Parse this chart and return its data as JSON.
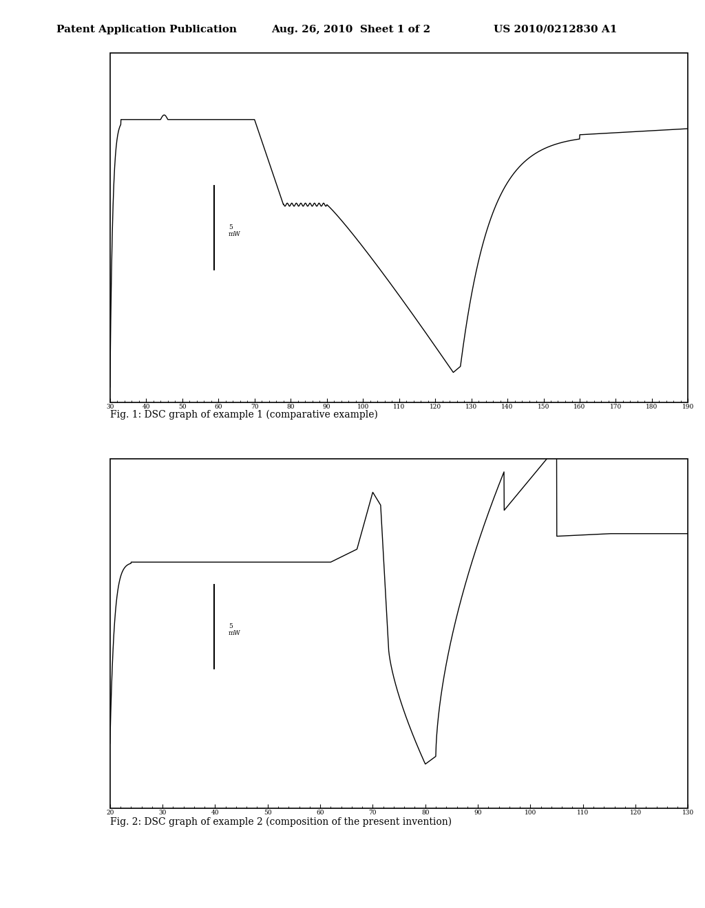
{
  "background_color": "#ffffff",
  "header_left": "Patent Application Publication",
  "header_center": "Aug. 26, 2010  Sheet 1 of 2",
  "header_right": "US 2010/0212830 A1",
  "fig1_caption": "Fig. 1: DSC graph of example 1 (comparative example)",
  "fig2_caption": "Fig. 2: DSC graph of example 2 (composition of the present invention)",
  "fig1_ylabel": "5\nmW",
  "fig2_ylabel": "5\nmW",
  "fig1_xticks_vals": [
    30,
    40,
    50,
    60,
    70,
    80,
    90,
    100,
    110,
    120,
    130,
    140,
    150,
    160,
    170,
    180,
    190
  ],
  "fig1_xticks_labels": [
    "30",
    "40",
    "50",
    "60",
    "70",
    "80",
    "90",
    "100",
    "110",
    "120",
    "130",
    "140",
    "150",
    "160",
    "170",
    "180",
    "190"
  ],
  "fig2_xticks_vals": [
    20,
    30,
    40,
    50,
    60,
    70,
    80,
    90,
    100,
    110,
    120,
    130
  ],
  "fig2_xticks_labels": [
    "20",
    "30",
    "40",
    "50",
    "60",
    "70",
    "80",
    "90",
    "100",
    "110",
    "120",
    "130"
  ],
  "line_color": "#000000"
}
